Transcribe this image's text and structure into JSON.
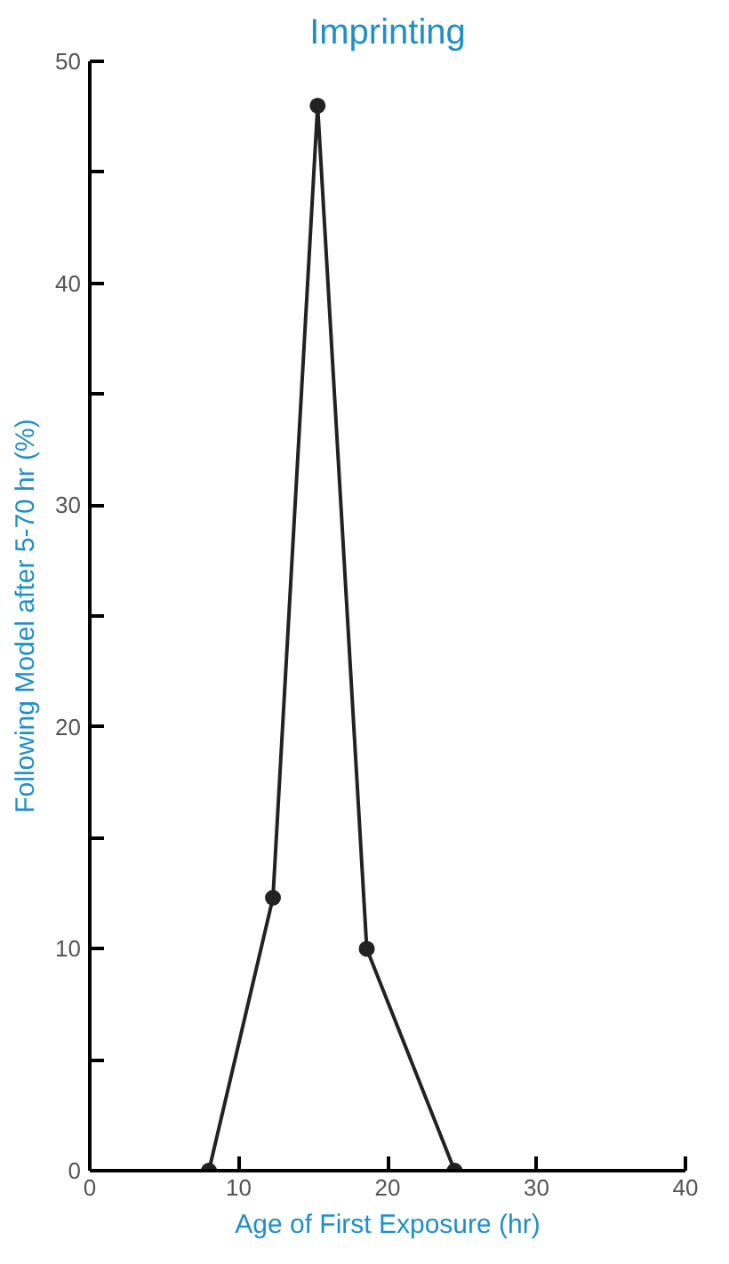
{
  "chart_data": {
    "type": "line",
    "title": "Imprinting",
    "xlabel": "Age of First Exposure (hr)",
    "ylabel": "Following Model after 5-70 hr (%)",
    "x": [
      8,
      12.3,
      15.3,
      18.6,
      24.5
    ],
    "series": [
      {
        "color": "#222222",
        "values": [
          0,
          12.3,
          48,
          10,
          0
        ]
      }
    ],
    "xlim": [
      0,
      40
    ],
    "xticks": [
      0,
      10,
      20,
      30,
      40
    ],
    "ylim": [
      0,
      50
    ],
    "yticks": [
      0,
      {
        "value": 5,
        "label": null
      },
      10,
      {
        "value": 15,
        "label": null
      },
      20,
      {
        "value": 25,
        "label": null
      },
      30,
      {
        "value": 35,
        "label": null
      },
      40,
      {
        "value": 45,
        "label": null
      },
      50
    ],
    "grid": false,
    "marker": "circle",
    "line_style": "solid"
  }
}
